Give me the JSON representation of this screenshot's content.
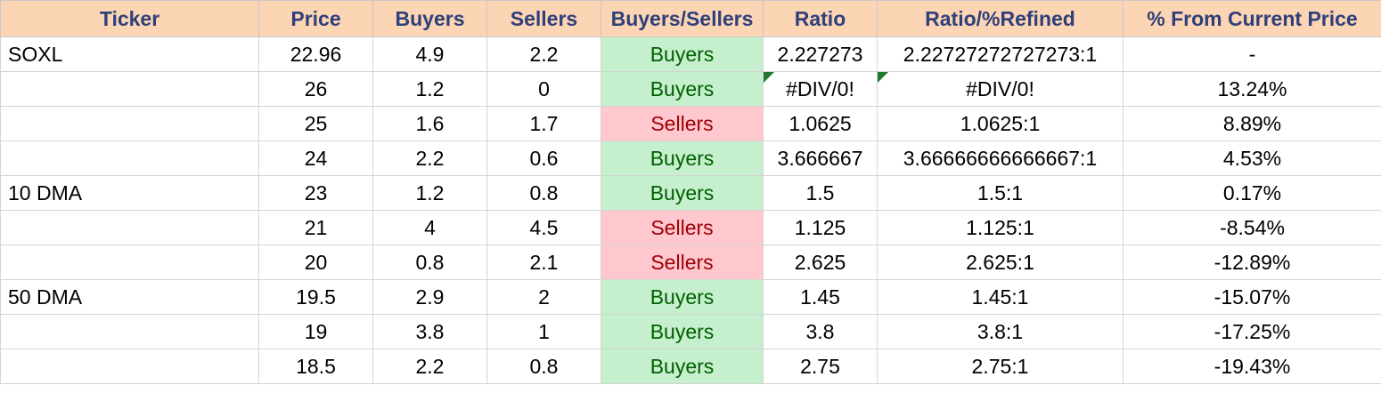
{
  "colors": {
    "header_bg": "#fcd5b4",
    "header_text": "#2e3f7a",
    "buyers_bg": "#c6efce",
    "buyers_text": "#006100",
    "sellers_bg": "#ffc7ce",
    "sellers_text": "#9c0006",
    "error_indicator": "#1f7a2e"
  },
  "headers": [
    "Ticker",
    "Price",
    "Buyers",
    "Sellers",
    "Buyers/Sellers",
    "Ratio",
    "Ratio/%Refined",
    "% From Current Price"
  ],
  "rows": [
    {
      "ticker": "SOXL",
      "price": "22.96",
      "buyers": "4.9",
      "sellers": "2.2",
      "side": "Buyers",
      "ratio": "2.227273",
      "refined": "2.22727272727273:1",
      "pct": "-",
      "ratio_error": false,
      "refined_error": false
    },
    {
      "ticker": "",
      "price": "26",
      "buyers": "1.2",
      "sellers": "0",
      "side": "Buyers",
      "ratio": "#DIV/0!",
      "refined": "#DIV/0!",
      "pct": "13.24%",
      "ratio_error": true,
      "refined_error": true
    },
    {
      "ticker": "",
      "price": "25",
      "buyers": "1.6",
      "sellers": "1.7",
      "side": "Sellers",
      "ratio": "1.0625",
      "refined": "1.0625:1",
      "pct": "8.89%",
      "ratio_error": false,
      "refined_error": false
    },
    {
      "ticker": "",
      "price": "24",
      "buyers": "2.2",
      "sellers": "0.6",
      "side": "Buyers",
      "ratio": "3.666667",
      "refined": "3.66666666666667:1",
      "pct": "4.53%",
      "ratio_error": false,
      "refined_error": false
    },
    {
      "ticker": "10 DMA",
      "price": "23",
      "buyers": "1.2",
      "sellers": "0.8",
      "side": "Buyers",
      "ratio": "1.5",
      "refined": "1.5:1",
      "pct": "0.17%",
      "ratio_error": false,
      "refined_error": false
    },
    {
      "ticker": "",
      "price": "21",
      "buyers": "4",
      "sellers": "4.5",
      "side": "Sellers",
      "ratio": "1.125",
      "refined": "1.125:1",
      "pct": "-8.54%",
      "ratio_error": false,
      "refined_error": false
    },
    {
      "ticker": "",
      "price": "20",
      "buyers": "0.8",
      "sellers": "2.1",
      "side": "Sellers",
      "ratio": "2.625",
      "refined": "2.625:1",
      "pct": "-12.89%",
      "ratio_error": false,
      "refined_error": false
    },
    {
      "ticker": "50 DMA",
      "price": "19.5",
      "buyers": "2.9",
      "sellers": "2",
      "side": "Buyers",
      "ratio": "1.45",
      "refined": "1.45:1",
      "pct": "-15.07%",
      "ratio_error": false,
      "refined_error": false
    },
    {
      "ticker": "",
      "price": "19",
      "buyers": "3.8",
      "sellers": "1",
      "side": "Buyers",
      "ratio": "3.8",
      "refined": "3.8:1",
      "pct": "-17.25%",
      "ratio_error": false,
      "refined_error": false
    },
    {
      "ticker": "",
      "price": "18.5",
      "buyers": "2.2",
      "sellers": "0.8",
      "side": "Buyers",
      "ratio": "2.75",
      "refined": "2.75:1",
      "pct": "-19.43%",
      "ratio_error": false,
      "refined_error": false
    }
  ]
}
